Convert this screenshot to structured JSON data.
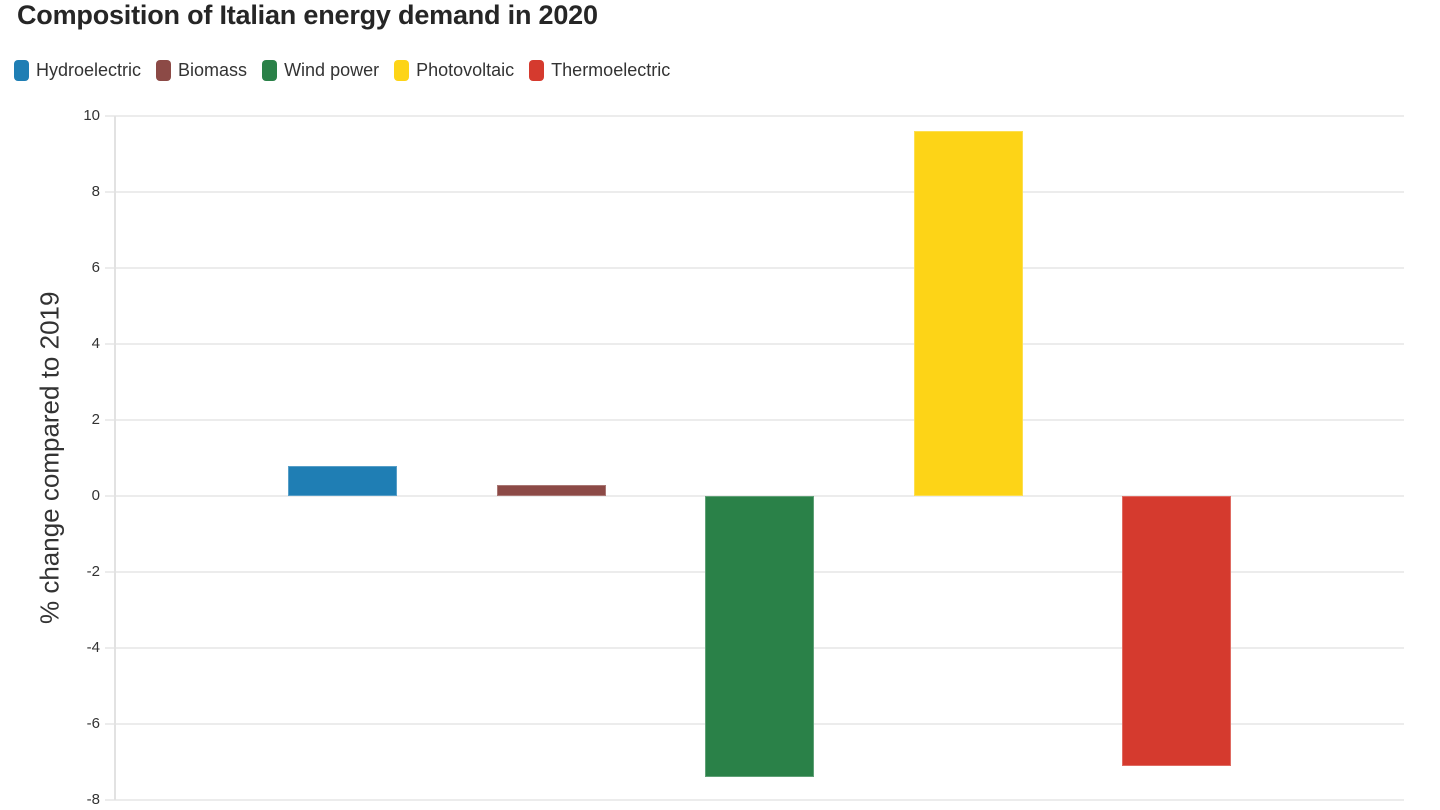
{
  "title": "Composition of Italian energy demand in 2020",
  "legend": {
    "items": [
      {
        "label": "Hydroelectric",
        "color": "#1f7eb4"
      },
      {
        "label": "Biomass",
        "color": "#8c4a46"
      },
      {
        "label": "Wind power",
        "color": "#2a8148"
      },
      {
        "label": "Photovoltaic",
        "color": "#fdd417"
      },
      {
        "label": "Thermoelectric",
        "color": "#d53a2e"
      }
    ]
  },
  "chart_data": {
    "type": "bar",
    "title": "Composition of Italian energy demand in 2020",
    "categories": [
      "Hydroelectric",
      "Biomass",
      "Wind power",
      "Photovoltaic",
      "Thermoelectric"
    ],
    "values": [
      0.8,
      0.3,
      -7.4,
      9.6,
      -7.1
    ],
    "colors": [
      "#1f7eb4",
      "#8c4a46",
      "#2a8148",
      "#fdd417",
      "#d53a2e"
    ],
    "xlabel": "",
    "ylabel": "% change compared to 2019",
    "ylim": [
      -8,
      10
    ],
    "yticks": [
      10,
      8,
      6,
      4,
      2,
      0,
      -2,
      -4,
      -6,
      -8
    ],
    "grid": true,
    "baseline": 0,
    "legend_position": "top-left",
    "accent_text_color": "#333333",
    "grid_color": "#ececec"
  }
}
